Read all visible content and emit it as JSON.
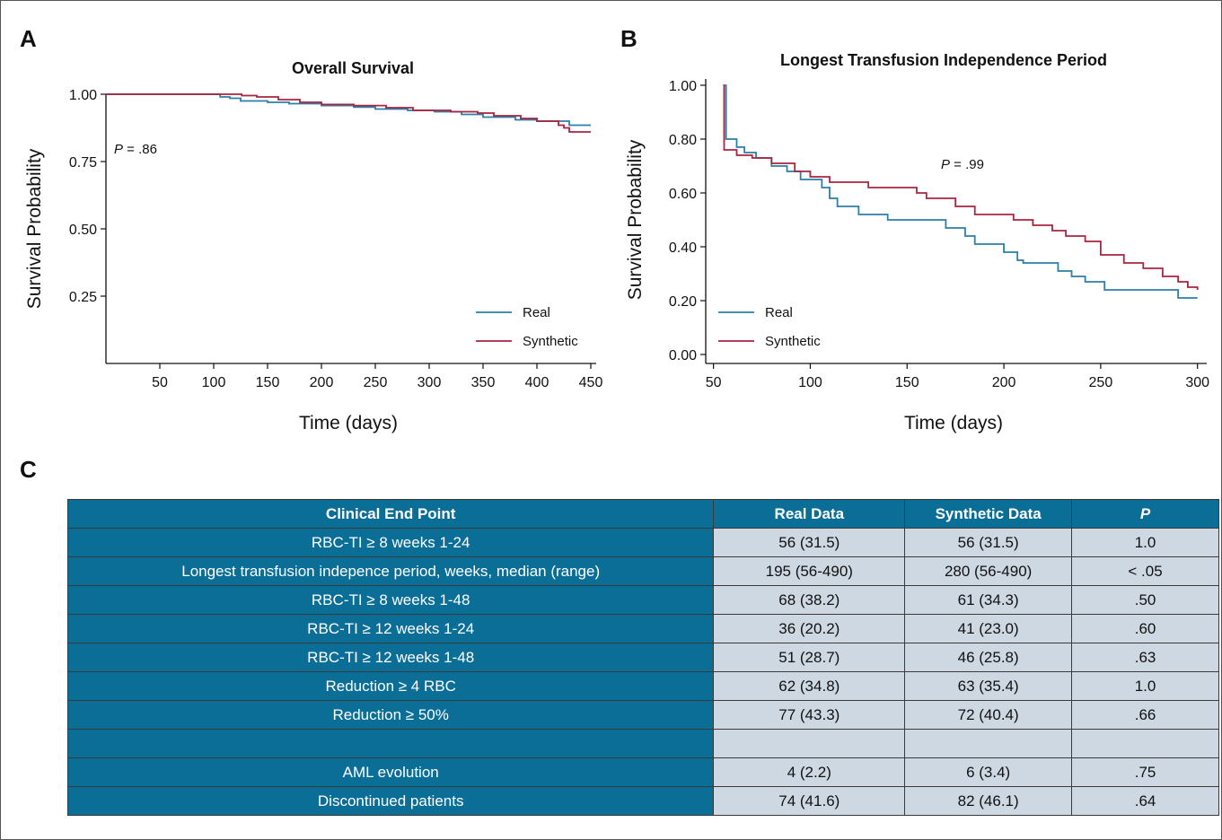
{
  "panels": {
    "a": {
      "letter": "A"
    },
    "b": {
      "letter": "B"
    },
    "c": {
      "letter": "C"
    }
  },
  "colors": {
    "real": "#2b7fa8",
    "synthetic": "#a8243f",
    "header_bg": "#0b6e96",
    "cell_bg": "#cdd8e3"
  },
  "chart_data": [
    {
      "id": "A",
      "type": "line",
      "title": "Overall Survival",
      "xlabel": "Time (days)",
      "ylabel": "Survival Probability",
      "xlim": [
        0,
        450
      ],
      "ylim": [
        0,
        1.0
      ],
      "xticks": [
        50,
        100,
        150,
        200,
        250,
        300,
        350,
        400,
        450
      ],
      "yticks": [
        0.25,
        0.5,
        0.75,
        1.0
      ],
      "ytick_labels": [
        "0.25",
        "0.50",
        "0.75",
        "1.00"
      ],
      "annotation": {
        "italic": "P",
        "text": " = .86"
      },
      "legend": "bottom-right",
      "series": [
        {
          "name": "Real",
          "color": "#2b7fa8",
          "step": true,
          "points": [
            [
              0,
              1.0
            ],
            [
              105,
              1.0
            ],
            [
              106,
              0.99
            ],
            [
              115,
              0.985
            ],
            [
              125,
              0.975
            ],
            [
              150,
              0.97
            ],
            [
              170,
              0.965
            ],
            [
              200,
              0.958
            ],
            [
              230,
              0.952
            ],
            [
              250,
              0.945
            ],
            [
              280,
              0.94
            ],
            [
              305,
              0.935
            ],
            [
              330,
              0.925
            ],
            [
              350,
              0.915
            ],
            [
              380,
              0.905
            ],
            [
              400,
              0.9
            ],
            [
              430,
              0.885
            ],
            [
              450,
              0.885
            ]
          ]
        },
        {
          "name": "Synthetic",
          "color": "#a8243f",
          "step": true,
          "points": [
            [
              0,
              1.0
            ],
            [
              125,
              1.0
            ],
            [
              126,
              0.995
            ],
            [
              140,
              0.99
            ],
            [
              160,
              0.98
            ],
            [
              180,
              0.97
            ],
            [
              200,
              0.962
            ],
            [
              230,
              0.958
            ],
            [
              260,
              0.95
            ],
            [
              285,
              0.94
            ],
            [
              320,
              0.935
            ],
            [
              345,
              0.93
            ],
            [
              360,
              0.92
            ],
            [
              385,
              0.91
            ],
            [
              400,
              0.9
            ],
            [
              420,
              0.885
            ],
            [
              425,
              0.875
            ],
            [
              430,
              0.86
            ],
            [
              450,
              0.86
            ]
          ]
        }
      ]
    },
    {
      "id": "B",
      "type": "line",
      "title": "Longest Transfusion Independence Period",
      "xlabel": "Time (days)",
      "ylabel": "Survival Probability",
      "xlim": [
        46,
        302
      ],
      "ylim": [
        0,
        1.0
      ],
      "xticks": [
        50,
        100,
        150,
        200,
        250,
        300
      ],
      "yticks": [
        0,
        0.2,
        0.4,
        0.6,
        0.8,
        1.0
      ],
      "ytick_labels": [
        "0.00",
        "0.20",
        "0.40",
        "0.60",
        "0.80",
        "1.00"
      ],
      "annotation": {
        "italic": "P",
        "text": " = .99"
      },
      "legend": "bottom-left",
      "series": [
        {
          "name": "Real",
          "color": "#2b7fa8",
          "step": true,
          "points": [
            [
              56,
              1.0
            ],
            [
              56.5,
              0.8
            ],
            [
              62,
              0.77
            ],
            [
              66,
              0.75
            ],
            [
              72,
              0.73
            ],
            [
              80,
              0.7
            ],
            [
              88,
              0.68
            ],
            [
              95,
              0.65
            ],
            [
              106,
              0.62
            ],
            [
              110,
              0.58
            ],
            [
              114,
              0.55
            ],
            [
              125,
              0.52
            ],
            [
              140,
              0.5
            ],
            [
              170,
              0.47
            ],
            [
              180,
              0.44
            ],
            [
              185,
              0.41
            ],
            [
              200,
              0.38
            ],
            [
              207,
              0.35
            ],
            [
              210,
              0.34
            ],
            [
              228,
              0.31
            ],
            [
              235,
              0.29
            ],
            [
              242,
              0.27
            ],
            [
              252,
              0.24
            ],
            [
              290,
              0.21
            ],
            [
              300,
              0.21
            ]
          ]
        },
        {
          "name": "Synthetic",
          "color": "#a8243f",
          "step": true,
          "points": [
            [
              55,
              1.0
            ],
            [
              55.5,
              0.76
            ],
            [
              62,
              0.74
            ],
            [
              70,
              0.73
            ],
            [
              80,
              0.71
            ],
            [
              92,
              0.68
            ],
            [
              100,
              0.66
            ],
            [
              110,
              0.64
            ],
            [
              130,
              0.62
            ],
            [
              155,
              0.6
            ],
            [
              160,
              0.58
            ],
            [
              175,
              0.55
            ],
            [
              185,
              0.52
            ],
            [
              205,
              0.5
            ],
            [
              215,
              0.48
            ],
            [
              225,
              0.46
            ],
            [
              232,
              0.44
            ],
            [
              242,
              0.42
            ],
            [
              250,
              0.37
            ],
            [
              262,
              0.34
            ],
            [
              272,
              0.32
            ],
            [
              282,
              0.29
            ],
            [
              290,
              0.27
            ],
            [
              295,
              0.25
            ],
            [
              300,
              0.24
            ]
          ]
        }
      ]
    }
  ],
  "table": {
    "headers": [
      "Clinical End Point",
      "Real Data",
      "Synthetic Data",
      "P"
    ],
    "rows": [
      [
        "RBC-TI ≥ 8 weeks 1-24",
        "56 (31.5)",
        "56 (31.5)",
        "1.0"
      ],
      [
        "Longest transfusion indepence period, weeks, median (range)",
        "195 (56-490)",
        "280 (56-490)",
        "< .05"
      ],
      [
        "RBC-TI ≥ 8 weeks 1-48",
        "68 (38.2)",
        "61 (34.3)",
        ".50"
      ],
      [
        "RBC-TI ≥ 12 weeks 1-24",
        "36 (20.2)",
        "41 (23.0)",
        ".60"
      ],
      [
        "RBC-TI ≥ 12 weeks 1-48",
        "51 (28.7)",
        "46 (25.8)",
        ".63"
      ],
      [
        "Reduction ≥ 4 RBC",
        "62 (34.8)",
        "63 (35.4)",
        "1.0"
      ],
      [
        "Reduction ≥ 50%",
        "77 (43.3)",
        "72 (40.4)",
        ".66"
      ],
      [
        "",
        "",
        "",
        ""
      ],
      [
        "AML evolution",
        "4 (2.2)",
        "6 (3.4)",
        ".75"
      ],
      [
        "Discontinued patients",
        "74 (41.6)",
        "82 (46.1)",
        ".64"
      ]
    ]
  }
}
